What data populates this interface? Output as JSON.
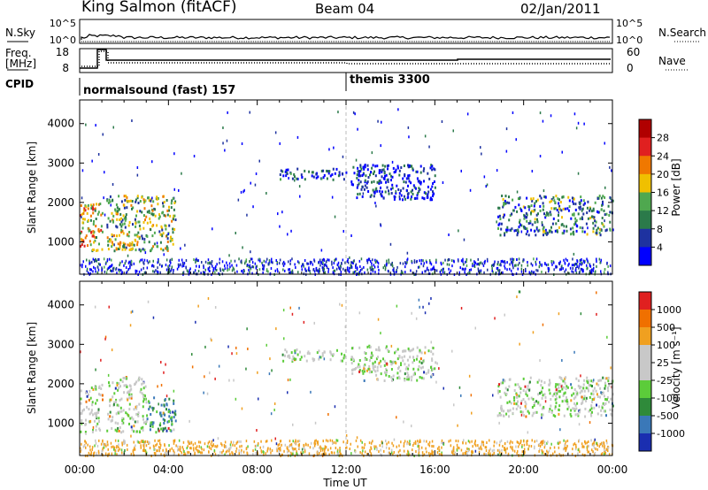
{
  "header": {
    "station": "King Salmon (fitACF)",
    "beam": "Beam 04",
    "date": "02/Jan/2011"
  },
  "side_labels": {
    "nsky": "N.Sky",
    "freq": "Freq.",
    "freq_unit": "[MHz]",
    "cpid": "CPID",
    "nsearch": "N.Search",
    "nave": "Nave"
  },
  "noise_axis": {
    "left_ticks": [
      "10^5",
      "10^0"
    ],
    "right_ticks": [
      "10^5",
      "10^0"
    ]
  },
  "freq_axis": {
    "left_ticks": [
      "18",
      "8"
    ],
    "right_ticks": [
      "60",
      "0"
    ]
  },
  "cpid_labels": {
    "first": "normalsound (fast) 157",
    "second": "themis 3300"
  },
  "chart_data": [
    {
      "type": "heatmap",
      "name": "power-panel",
      "ylabel": "Slant Range [km]",
      "ylim": [
        180,
        4600
      ],
      "yticks": [
        "1000",
        "2000",
        "3000",
        "4000"
      ],
      "xlim": [
        0,
        24
      ],
      "colorbar": {
        "label": "Power [dB]",
        "ticks": [
          "28",
          "24",
          "20",
          "16",
          "12",
          "8",
          "4"
        ],
        "colors": [
          "#0000ff",
          "#1e32a0",
          "#2b7a4a",
          "#4fa84f",
          "#f0c000",
          "#f07800",
          "#e02020",
          "#b00000"
        ]
      },
      "regions": [
        {
          "t": [
            0.0,
            1.0
          ],
          "r": [
            800,
            2000
          ],
          "level": 0.6
        },
        {
          "t": [
            1.2,
            4.3
          ],
          "r": [
            800,
            2200
          ],
          "level": 0.45
        },
        {
          "t": [
            9.0,
            12.0
          ],
          "r": [
            2600,
            2900
          ],
          "level": 0.15
        },
        {
          "t": [
            12.2,
            16.0
          ],
          "r": [
            2100,
            3000
          ],
          "level": 0.12
        },
        {
          "t": [
            18.8,
            24.0
          ],
          "r": [
            1200,
            2200
          ],
          "level": 0.3
        }
      ]
    },
    {
      "type": "heatmap",
      "name": "velocity-panel",
      "ylabel": "Slant Range [km]",
      "xlabel": "Time UT",
      "ylim": [
        180,
        4600
      ],
      "yticks": [
        "1000",
        "2000",
        "3000",
        "4000"
      ],
      "xlim": [
        0,
        24
      ],
      "xticks": [
        "00:00",
        "04:00",
        "08:00",
        "12:00",
        "16:00",
        "20:00",
        "00:00"
      ],
      "colorbar": {
        "label": "Velocity [m s⁻¹]",
        "ticks": [
          "1000",
          "500",
          "100",
          "25",
          "-25",
          "-100",
          "-500",
          "-1000"
        ],
        "colors": [
          "#1a2eb0",
          "#3a78b8",
          "#2f8a3a",
          "#5ccc3a",
          "#c8c8c8",
          "#c8c8c8",
          "#f0a020",
          "#f07000",
          "#e02020"
        ]
      },
      "regions": [
        {
          "t": [
            0.0,
            1.0
          ],
          "r": [
            800,
            2000
          ],
          "level": 0.5
        },
        {
          "t": [
            1.2,
            3.0
          ],
          "r": [
            800,
            2200
          ],
          "level": 0.5
        },
        {
          "t": [
            3.0,
            4.3
          ],
          "r": [
            800,
            1700
          ],
          "level": 0.75
        },
        {
          "t": [
            9.0,
            12.0
          ],
          "r": [
            2600,
            2900
          ],
          "level": 0.5
        },
        {
          "t": [
            12.2,
            16.0
          ],
          "r": [
            2100,
            3000
          ],
          "level": 0.5
        },
        {
          "t": [
            18.8,
            24.0
          ],
          "r": [
            1200,
            2200
          ],
          "level": 0.5
        }
      ]
    }
  ]
}
